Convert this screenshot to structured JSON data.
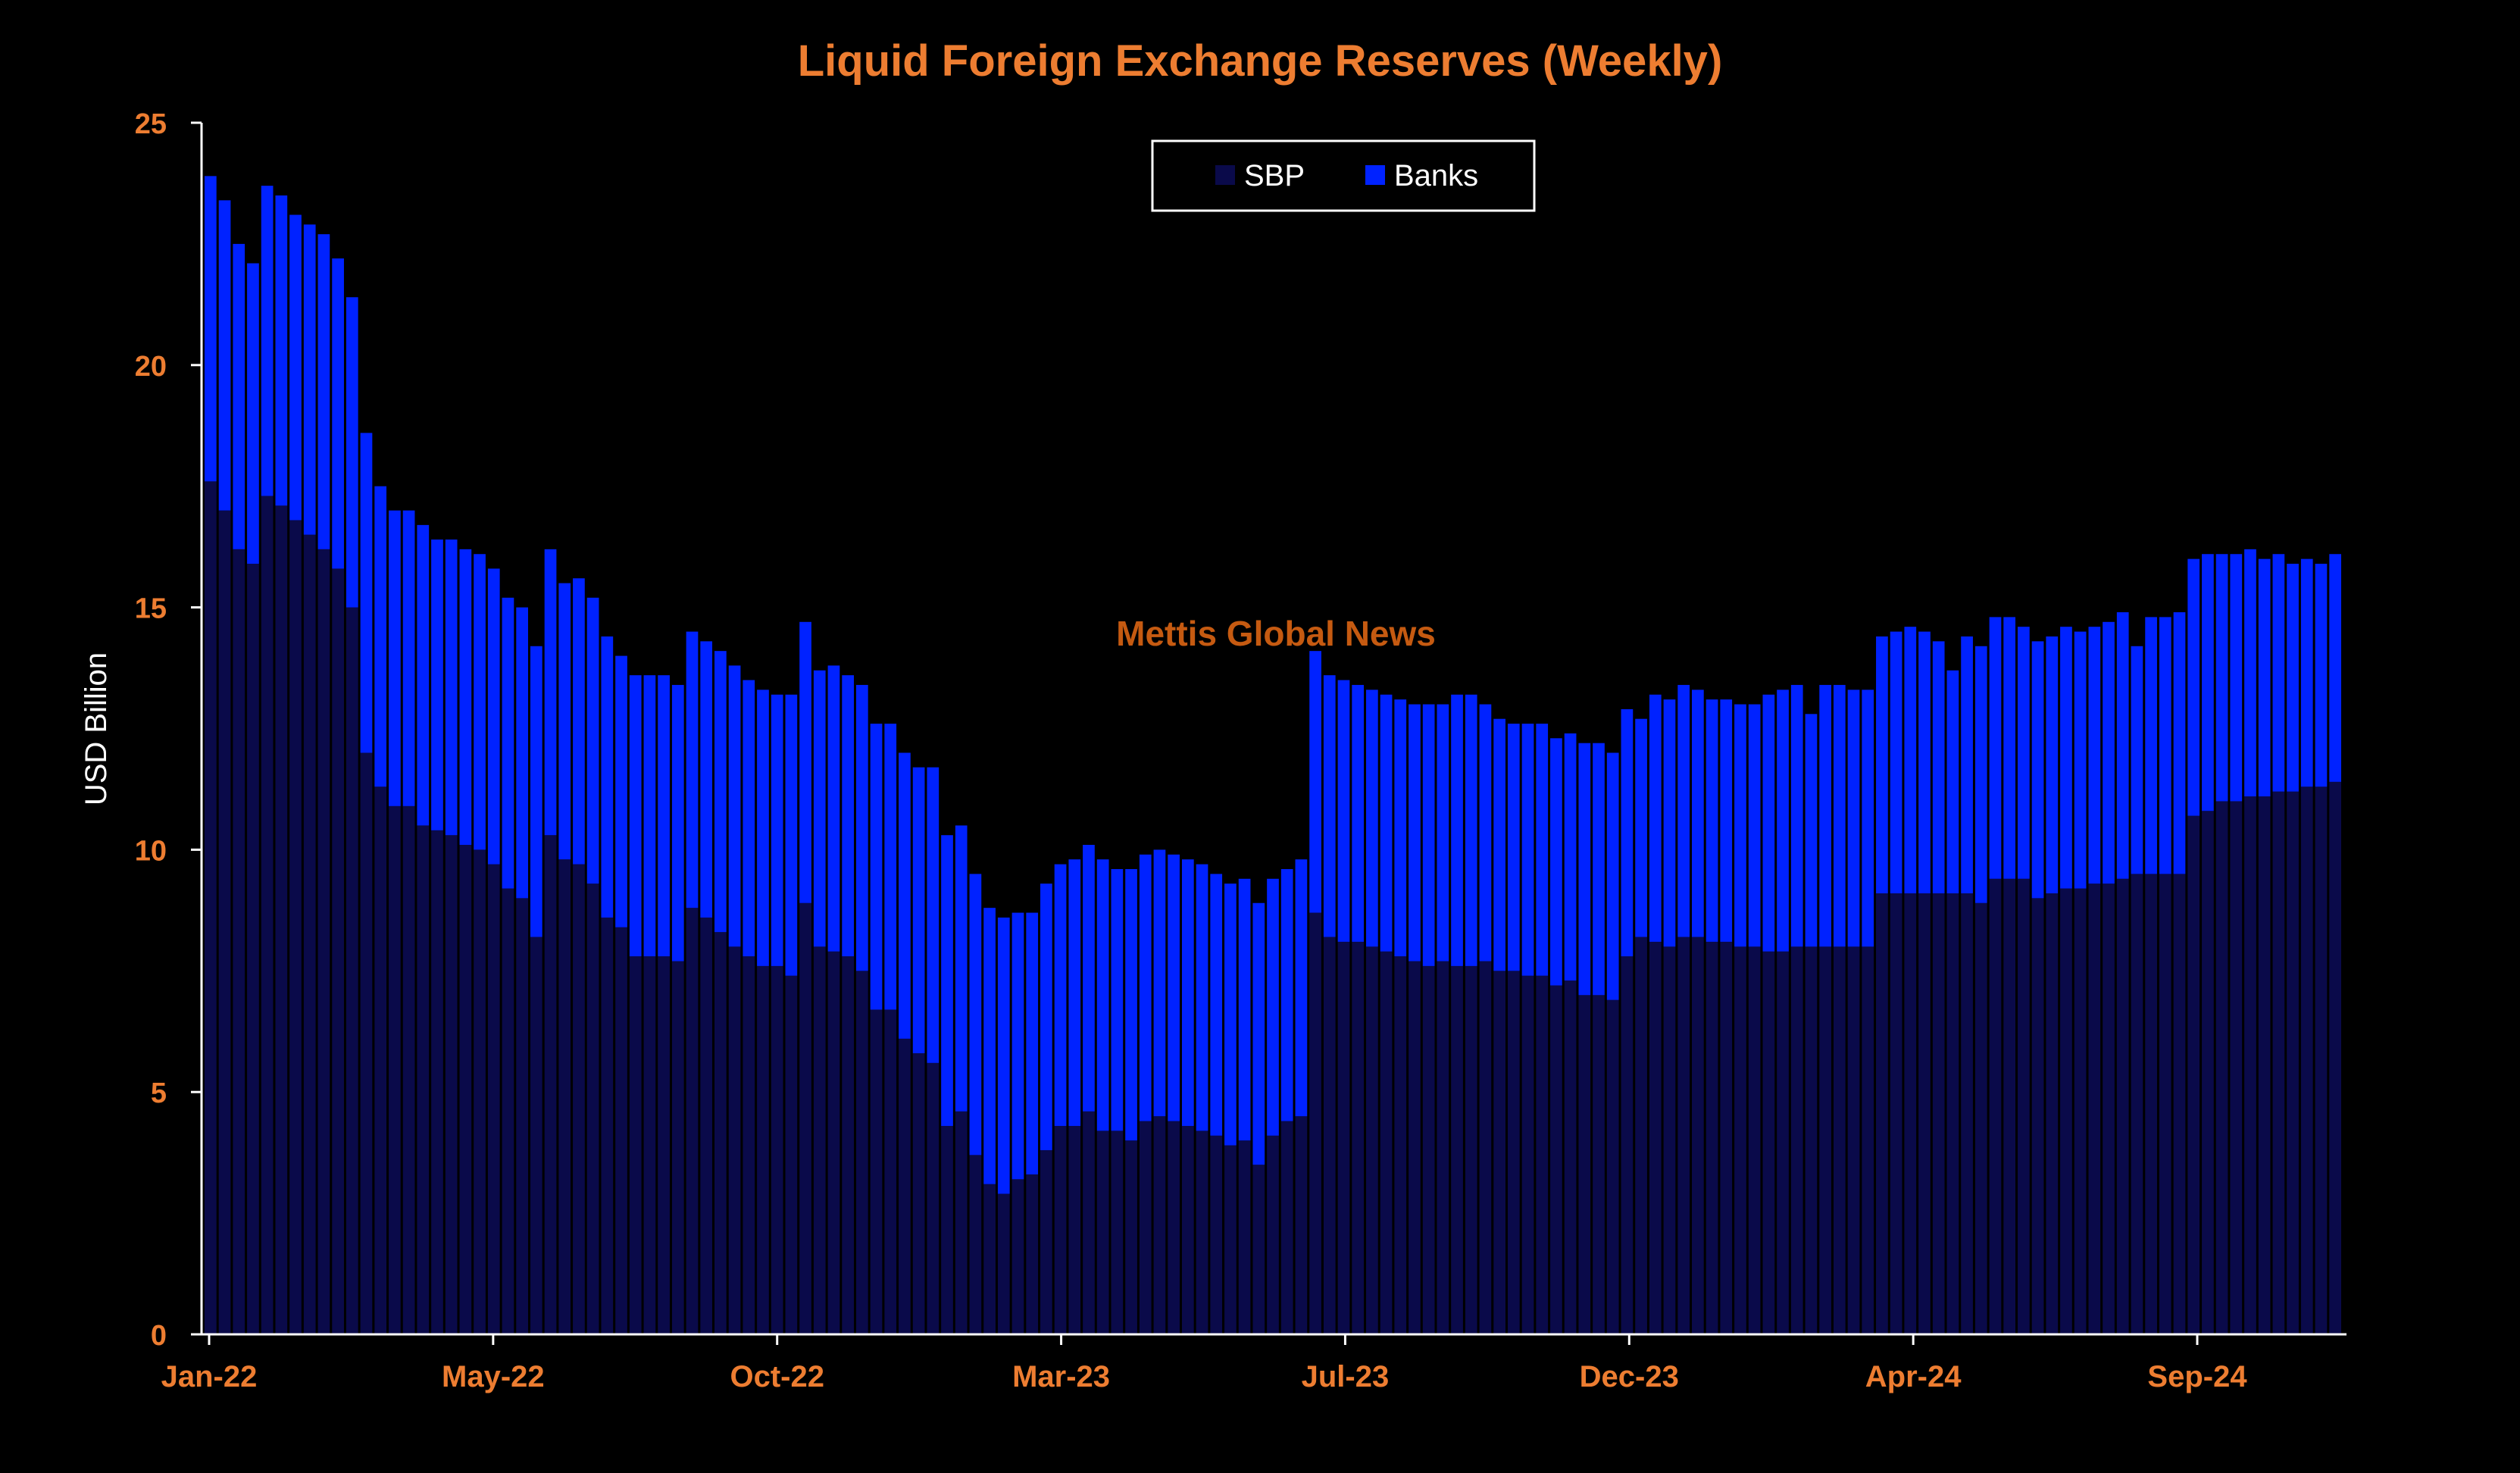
{
  "chart_data": {
    "type": "bar",
    "stacked": true,
    "title": "Liquid Foreign Exchange Reserves (Weekly)",
    "xlabel": "",
    "ylabel": "USD Billion",
    "ylim": [
      0,
      25
    ],
    "yticks": [
      "0",
      "5",
      "10",
      "15",
      "20",
      "25"
    ],
    "xticks": [
      "Jan-22",
      "May-22",
      "Oct-22",
      "Mar-23",
      "Jul-23",
      "Dec-23",
      "Apr-24",
      "Sep-24"
    ],
    "watermark": "Mettis Global News",
    "legend_position": "top-center",
    "series": [
      {
        "name": "SBP",
        "color": "#0A0A4A",
        "values": [
          17.6,
          17.0,
          16.2,
          15.9,
          17.3,
          17.1,
          16.8,
          16.5,
          16.2,
          15.8,
          15.0,
          12.0,
          11.3,
          10.9,
          10.9,
          10.5,
          10.4,
          10.3,
          10.1,
          10.0,
          9.7,
          9.2,
          9.0,
          8.2,
          10.3,
          9.8,
          9.7,
          9.3,
          8.6,
          8.4,
          7.8,
          7.8,
          7.8,
          7.7,
          8.8,
          8.6,
          8.3,
          8.0,
          7.8,
          7.6,
          7.6,
          7.4,
          8.9,
          8.0,
          7.9,
          7.8,
          7.5,
          6.7,
          6.7,
          6.1,
          5.8,
          5.6,
          4.3,
          4.6,
          3.7,
          3.1,
          2.9,
          3.2,
          3.3,
          3.8,
          4.3,
          4.3,
          4.6,
          4.2,
          4.2,
          4.0,
          4.4,
          4.5,
          4.4,
          4.3,
          4.2,
          4.1,
          3.9,
          4.0,
          3.5,
          4.1,
          4.4,
          4.5,
          8.7,
          8.2,
          8.1,
          8.1,
          8.0,
          7.9,
          7.8,
          7.7,
          7.6,
          7.7,
          7.6,
          7.6,
          7.7,
          7.5,
          7.5,
          7.4,
          7.4,
          7.2,
          7.3,
          7.0,
          7.0,
          6.9,
          7.8,
          8.2,
          8.1,
          8.0,
          8.2,
          8.2,
          8.1,
          8.1,
          8.0,
          8.0,
          7.9,
          7.9,
          8.0,
          8.0,
          8.0,
          8.0,
          8.0,
          8.0,
          9.1,
          9.1,
          9.1,
          9.1,
          9.1,
          9.1,
          9.1,
          8.9,
          9.4,
          9.4,
          9.4,
          9.0,
          9.1,
          9.2,
          9.2,
          9.3,
          9.3,
          9.4,
          9.5,
          9.5,
          9.5,
          9.5,
          10.7,
          10.8,
          11.0,
          11.0,
          11.1,
          11.1,
          11.2,
          11.2,
          11.3,
          11.3,
          11.4
        ]
      },
      {
        "name": "Banks",
        "color": "#0022FF",
        "values": [
          6.3,
          6.4,
          6.3,
          6.2,
          6.4,
          6.4,
          6.3,
          6.4,
          6.5,
          6.4,
          6.4,
          6.6,
          6.2,
          6.1,
          6.1,
          6.2,
          6.0,
          6.1,
          6.1,
          6.1,
          6.1,
          6.0,
          6.0,
          6.0,
          5.9,
          5.7,
          5.9,
          5.9,
          5.8,
          5.6,
          5.8,
          5.8,
          5.8,
          5.7,
          5.7,
          5.7,
          5.8,
          5.8,
          5.7,
          5.7,
          5.6,
          5.8,
          5.8,
          5.7,
          5.9,
          5.8,
          5.9,
          5.9,
          5.9,
          5.9,
          5.9,
          6.1,
          6.0,
          5.9,
          5.8,
          5.7,
          5.7,
          5.5,
          5.4,
          5.5,
          5.4,
          5.5,
          5.5,
          5.6,
          5.4,
          5.6,
          5.5,
          5.5,
          5.5,
          5.5,
          5.5,
          5.4,
          5.4,
          5.4,
          5.4,
          5.3,
          5.2,
          5.3,
          5.4,
          5.4,
          5.4,
          5.3,
          5.3,
          5.3,
          5.3,
          5.3,
          5.4,
          5.3,
          5.6,
          5.6,
          5.3,
          5.2,
          5.1,
          5.2,
          5.2,
          5.1,
          5.1,
          5.2,
          5.2,
          5.1,
          5.1,
          4.5,
          5.1,
          5.1,
          5.2,
          5.1,
          5.0,
          5.0,
          5.0,
          5.0,
          5.3,
          5.4,
          5.4,
          4.8,
          5.4,
          5.4,
          5.3,
          5.3,
          5.3,
          5.4,
          5.5,
          5.4,
          5.2,
          4.6,
          5.3,
          5.3,
          5.4,
          5.4,
          5.2,
          5.3,
          5.3,
          5.4,
          5.3,
          5.3,
          5.4,
          5.5,
          4.7,
          5.3,
          5.3,
          5.4,
          5.3,
          5.3,
          5.1,
          5.1,
          5.1,
          4.9,
          4.9,
          4.7,
          4.7,
          4.6,
          4.7
        ]
      }
    ]
  }
}
